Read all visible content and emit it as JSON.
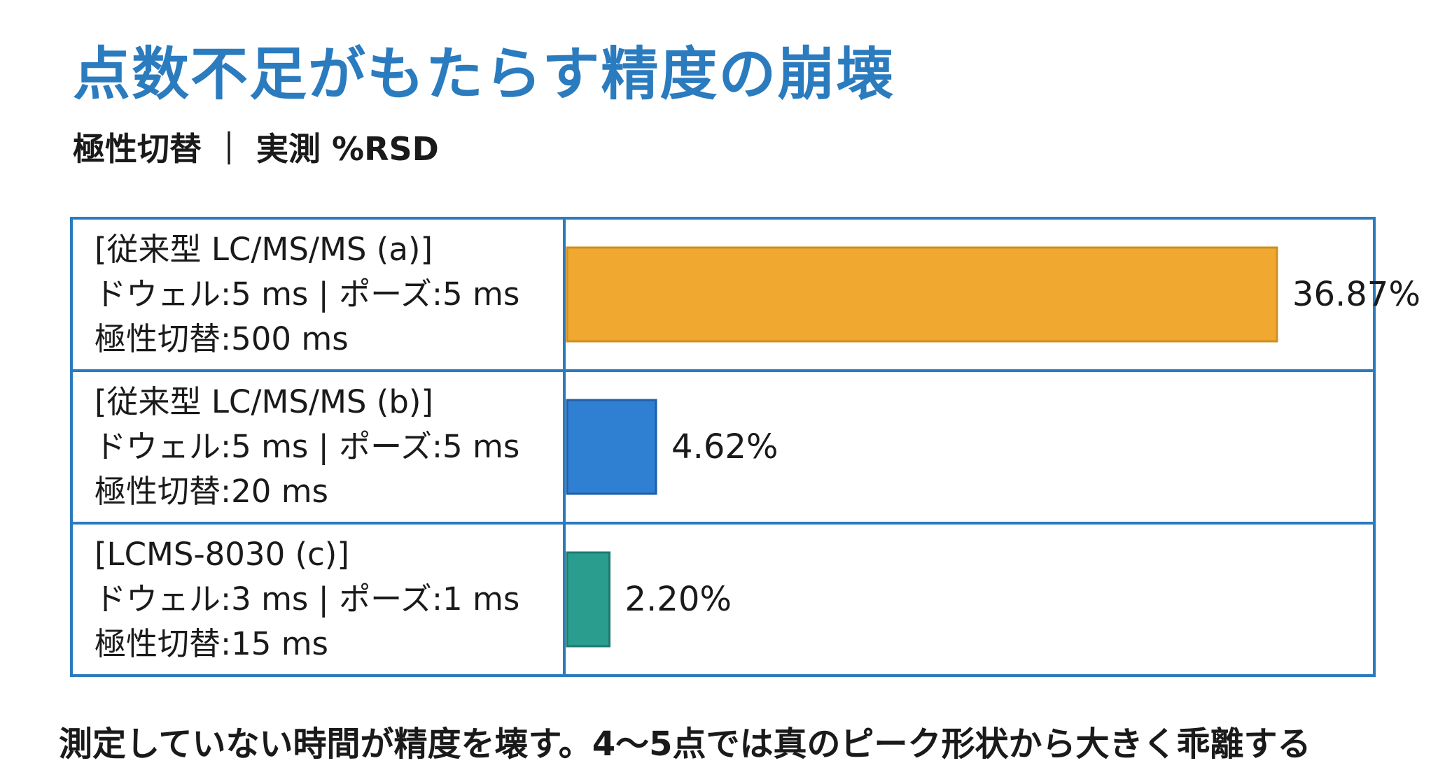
{
  "title": "点数不足がもたらす精度の崩壊",
  "subtitle": "極性切替 ｜ 実測 %RSD",
  "footer": "測定していない時間が精度を壊す。4〜5点では真のピーク形状から大きく乖離する",
  "colors": {
    "title": "#2b7bbf",
    "border": "#2b7bbf",
    "bar_a": "#f0a830",
    "bar_a_stroke": "#d08e1e",
    "bar_b": "#2f7fd3",
    "bar_b_stroke": "#1f5fa8",
    "bar_c": "#2a9d8f",
    "bar_c_stroke": "#1e7a6f"
  },
  "chart_data": {
    "type": "bar",
    "orientation": "horizontal",
    "unit": "%",
    "xlim": [
      0,
      40
    ],
    "categories": [
      {
        "lines": [
          "[従来型 LC/MS/MS (a)]",
          "ドウェル:5 ms | ポーズ:5 ms",
          "極性切替:500 ms"
        ]
      },
      {
        "lines": [
          "[従来型 LC/MS/MS (b)]",
          "ドウェル:5 ms | ポーズ:5 ms",
          "極性切替:20 ms"
        ]
      },
      {
        "lines": [
          "[LCMS-8030 (c)]",
          "ドウェル:3 ms | ポーズ:1 ms",
          "極性切替:15 ms"
        ]
      }
    ],
    "values": [
      36.87,
      4.62,
      2.2
    ],
    "value_labels": [
      "36.87%",
      "4.62%",
      "2.20%"
    ],
    "grid": false,
    "legend": "none"
  }
}
